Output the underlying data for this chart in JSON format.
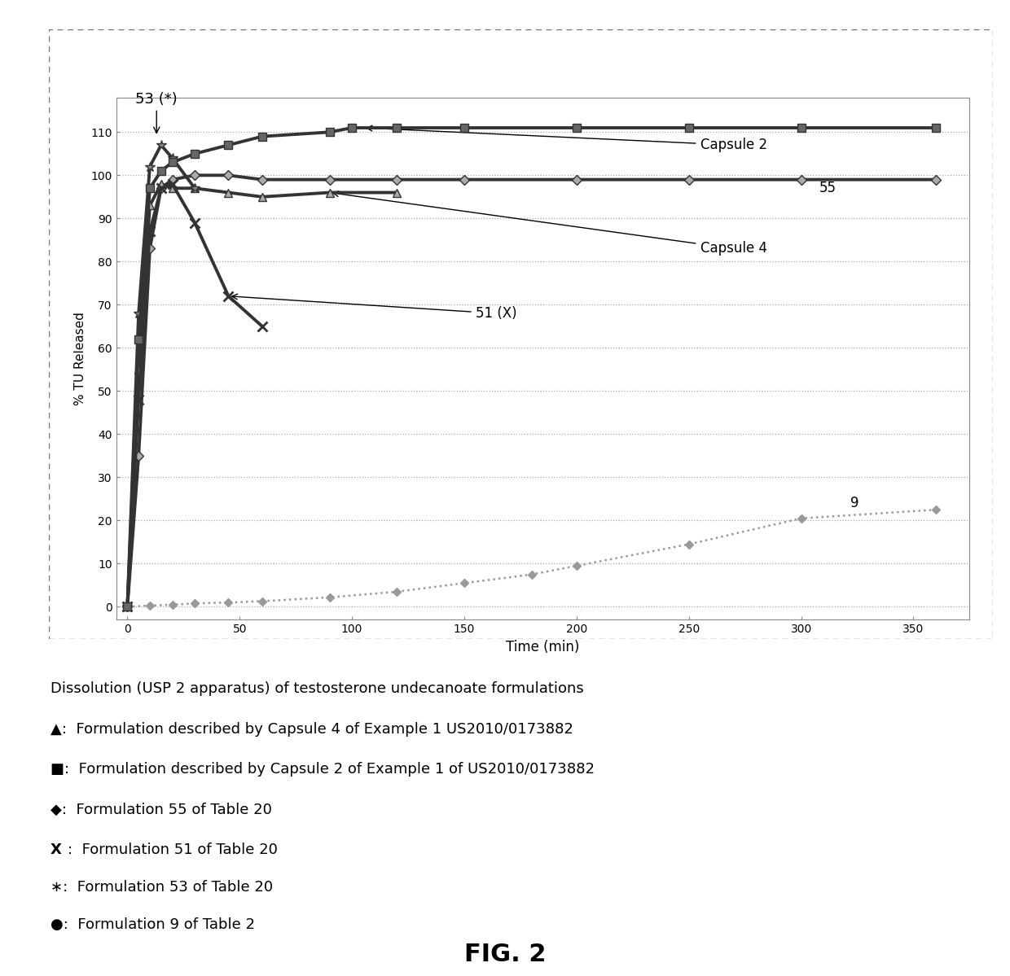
{
  "xlabel": "Time (min)",
  "ylabel": "% TU Released",
  "xlim": [
    -5,
    375
  ],
  "ylim": [
    -3,
    118
  ],
  "xticks": [
    0,
    50,
    100,
    150,
    200,
    250,
    300,
    350
  ],
  "yticks": [
    0,
    10,
    20,
    30,
    40,
    50,
    60,
    70,
    80,
    90,
    100,
    110
  ],
  "caption_line0": "Dissolution (USP 2 apparatus) of testosterone undecanoate formulations",
  "caption_lines": [
    "▲:  Formulation described by Capsule 4 of Example 1 US2010/0173882",
    "■:  Formulation described by Capsule 2 of Example 1 of US2010/0173882",
    "◆:  Formulation 55 of Table 20",
    "X:  Formulation 51 of Table 20",
    "∗:  Formulation 53 of Table 20",
    "●:  Formulation 9 of Table 2"
  ],
  "series": {
    "form9": {
      "marker": "D",
      "lw": 1.8,
      "ms": 5,
      "x": [
        0,
        10,
        20,
        30,
        45,
        60,
        90,
        120,
        150,
        180,
        200,
        250,
        300,
        360
      ],
      "y": [
        0,
        0.3,
        0.5,
        0.8,
        1.0,
        1.3,
        2.2,
        3.5,
        5.5,
        7.5,
        9.5,
        14.5,
        20.5,
        22.5
      ]
    },
    "form55": {
      "marker": "D",
      "lw": 2.5,
      "ms": 6,
      "x": [
        0,
        5,
        10,
        15,
        20,
        30,
        45,
        60,
        90,
        120,
        150,
        200,
        250,
        300,
        360
      ],
      "y": [
        0,
        35,
        83,
        97,
        99,
        100,
        100,
        99,
        99,
        99,
        99,
        99,
        99,
        99,
        99
      ]
    },
    "capsule4": {
      "marker": "^",
      "lw": 2.5,
      "ms": 7,
      "x": [
        0,
        5,
        10,
        15,
        20,
        30,
        45,
        60,
        90,
        120
      ],
      "y": [
        0,
        55,
        93,
        98,
        97,
        97,
        96,
        95,
        96,
        96
      ]
    },
    "form51": {
      "marker": "x",
      "lw": 2.5,
      "ms": 8,
      "x": [
        0,
        5,
        10,
        15,
        20,
        30,
        45,
        60
      ],
      "y": [
        0,
        48,
        87,
        97,
        98,
        89,
        72,
        65
      ]
    },
    "form53": {
      "marker": "*",
      "lw": 2.5,
      "ms": 9,
      "x": [
        0,
        5,
        10,
        15,
        20,
        30
      ],
      "y": [
        0,
        68,
        102,
        107,
        104,
        97
      ]
    },
    "capsule2": {
      "marker": "s",
      "lw": 2.5,
      "ms": 7,
      "x": [
        0,
        5,
        10,
        15,
        20,
        30,
        45,
        60,
        90,
        100,
        120,
        150,
        200,
        250,
        300,
        360
      ],
      "y": [
        0,
        62,
        97,
        101,
        103,
        105,
        107,
        109,
        110,
        111,
        111,
        111,
        111,
        111,
        111,
        111
      ]
    }
  }
}
